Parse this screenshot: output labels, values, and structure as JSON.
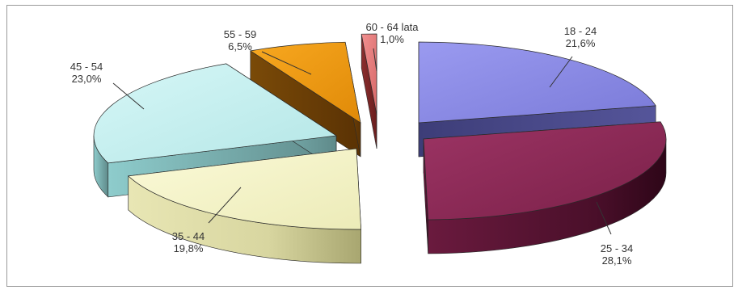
{
  "chart_data": {
    "type": "pie",
    "title": "",
    "legend": "none",
    "slices": [
      {
        "label": "18 - 24",
        "value_text": "21,6%",
        "value": 21.6,
        "color": "#8c8ce6"
      },
      {
        "label": "25 - 34",
        "value_text": "28,1%",
        "value": 28.1,
        "color": "#8a2a55"
      },
      {
        "label": "35 - 44",
        "value_text": "19,8%",
        "value": 19.8,
        "color": "#f7f5c8"
      },
      {
        "label": "45 - 54",
        "value_text": "23,0%",
        "value": 23.0,
        "color": "#c6f0f0"
      },
      {
        "label": "55 - 59",
        "value_text": "6,5%",
        "value": 6.5,
        "color": "#f0960e"
      },
      {
        "label": "60 - 64 lata",
        "value_text": "1,0%",
        "value": 1.0,
        "color": "#e87a7a"
      }
    ]
  }
}
